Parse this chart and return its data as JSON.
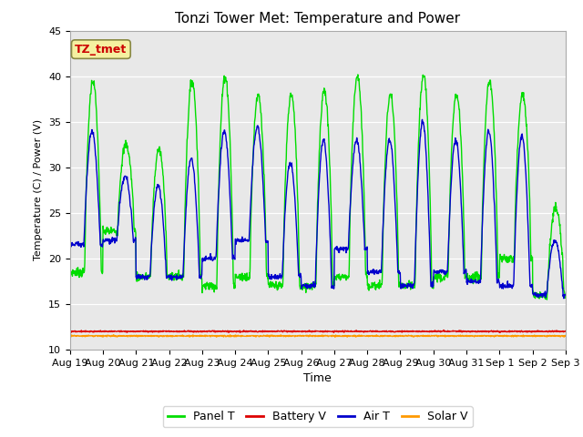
{
  "title": "Tonzi Tower Met: Temperature and Power",
  "xlabel": "Time",
  "ylabel": "Temperature (C) / Power (V)",
  "ylim": [
    10,
    45
  ],
  "bg_color": "#e8e8e8",
  "annotation_text": "TZ_tmet",
  "annotation_color": "#cc0000",
  "annotation_bg": "#f5f0a0",
  "annotation_border": "#888844",
  "legend_entries": [
    "Panel T",
    "Battery V",
    "Air T",
    "Solar V"
  ],
  "legend_colors": [
    "#00dd00",
    "#dd0000",
    "#0000cc",
    "#ff9900"
  ],
  "xtick_labels": [
    "Aug 19",
    "Aug 20",
    "Aug 21",
    "Aug 22",
    "Aug 23",
    "Aug 24",
    "Aug 25",
    "Aug 26",
    "Aug 27",
    "Aug 28",
    "Aug 29",
    "Aug 30",
    "Aug 31",
    "Sep 1",
    "Sep 2",
    "Sep 3"
  ],
  "n_days": 15,
  "battery_v": 12.0,
  "solar_v": 11.5,
  "panel_peaks": [
    39.5,
    32.5,
    32.0,
    39.5,
    40.0,
    38.0,
    38.0,
    38.5,
    40.0,
    38.0,
    40.0,
    38.0,
    39.5,
    38.0,
    25.5
  ],
  "panel_troughs": [
    18.5,
    23.0,
    18.0,
    18.0,
    17.0,
    18.0,
    17.0,
    17.0,
    18.0,
    17.0,
    17.0,
    18.0,
    18.0,
    20.0,
    16.0
  ],
  "air_peaks": [
    34.0,
    29.0,
    28.0,
    31.0,
    34.0,
    34.5,
    30.5,
    33.0,
    33.0,
    33.0,
    35.0,
    33.0,
    34.0,
    33.5,
    22.0
  ],
  "air_troughs": [
    21.5,
    22.0,
    18.0,
    18.0,
    20.0,
    22.0,
    18.0,
    17.0,
    21.0,
    18.5,
    17.0,
    18.5,
    17.5,
    17.0,
    16.0
  ],
  "yticks": [
    10,
    15,
    20,
    25,
    30,
    35,
    40,
    45
  ]
}
